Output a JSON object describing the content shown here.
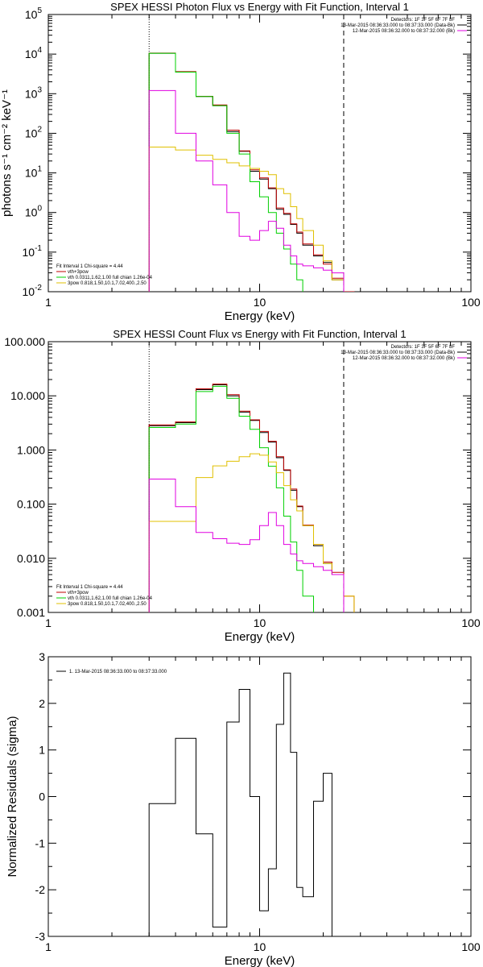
{
  "colors": {
    "data": "#000000",
    "vth_3pow": "#c00000",
    "vth": "#00d000",
    "_3pow": "#e0c000",
    "bk": "#e000e0"
  },
  "chart_data": [
    {
      "type": "line",
      "title": "SPEX HESSI Photon Flux vs Energy with Fit Function, Interval 1",
      "xlabel": "Energy (keV)",
      "ylabel": "photons s⁻¹ cm⁻² keV⁻¹",
      "xscale": "log",
      "yscale": "log",
      "xlim": [
        1,
        100
      ],
      "ylim": [
        0.01,
        100000
      ],
      "x_ticks": [
        "1",
        "10",
        "100"
      ],
      "y_ticks": [
        {
          "v": 0.01,
          "base": "10",
          "exp": "-2"
        },
        {
          "v": 0.1,
          "base": "10",
          "exp": "-1"
        },
        {
          "v": 1,
          "base": "10",
          "exp": "0"
        },
        {
          "v": 10,
          "base": "10",
          "exp": "1"
        },
        {
          "v": 100,
          "base": "10",
          "exp": "2"
        },
        {
          "v": 1000,
          "base": "10",
          "exp": "3"
        },
        {
          "v": 10000,
          "base": "10",
          "exp": "4"
        },
        {
          "v": 100000,
          "base": "10",
          "exp": "5"
        }
      ],
      "vlines": [
        {
          "x": 3,
          "style": "dotted"
        },
        {
          "x": 25,
          "style": "dashed"
        }
      ],
      "legend_top": [
        {
          "text": "Detectors: 1F 3F 5F 6F 7F 8F",
          "color": ""
        },
        {
          "text": "13-Mar-2015 08:36:33.000 to 08:37:33.000 (Data-Bk)",
          "color": "data"
        },
        {
          "text": "12-Mar-2015 08:36:32.000 to 08:37:32.000 (Bk)",
          "color": "bk"
        }
      ],
      "legend_bottom": [
        {
          "text": "Fit Interval 1   Chi-square = 4.44",
          "color": ""
        },
        {
          "text": "vth+3pow",
          "color": "vth_3pow"
        },
        {
          "text": "vth 0.0311,1.62,1.00  full chian 1.26e-04",
          "color": "vth"
        },
        {
          "text": "3pow 0.818,1.50,10.1,7.02,400.,2.50",
          "color": "_3pow"
        }
      ],
      "edges": [
        3,
        4,
        5,
        6,
        7,
        8,
        9,
        10,
        11,
        12,
        13,
        14,
        15,
        16,
        18,
        20,
        22,
        25,
        28
      ],
      "series": [
        {
          "key": "data",
          "values": [
            10500,
            3500,
            850,
            500,
            110,
            35,
            11,
            7,
            4,
            1.2,
            0.9,
            0.5,
            0.3,
            0.15,
            0.08,
            0.055,
            0.02,
            null
          ]
        },
        {
          "key": "vth_3pow",
          "values": [
            10600,
            3600,
            860,
            520,
            120,
            36,
            12,
            7.5,
            4.2,
            1.3,
            0.95,
            0.52,
            0.32,
            0.16,
            0.085,
            0.05,
            0.022,
            0.01
          ]
        },
        {
          "key": "vth",
          "values": [
            10500,
            3500,
            850,
            500,
            100,
            30,
            6,
            2.5,
            1,
            0.3,
            0.12,
            0.05,
            0.02,
            0.008,
            null,
            null,
            null,
            null
          ]
        },
        {
          "key": "_3pow",
          "values": [
            45,
            38,
            28,
            22,
            18,
            15,
            13,
            11,
            9,
            4,
            3,
            1.4,
            0.7,
            0.35,
            0.15,
            0.06,
            0.02,
            0.008
          ]
        },
        {
          "key": "bk",
          "values": [
            1200,
            100,
            20,
            5,
            1,
            0.25,
            0.2,
            0.35,
            0.6,
            0.4,
            0.15,
            0.08,
            0.05,
            0.045,
            0.04,
            0.035,
            0.03,
            null
          ]
        }
      ]
    },
    {
      "type": "line",
      "title": "SPEX HESSI Count Flux vs Energy with Fit Function, Interval 1",
      "xlabel": "Energy (keV)",
      "ylabel": "",
      "xscale": "log",
      "yscale": "log",
      "xlim": [
        1,
        100
      ],
      "ylim": [
        0.001,
        100
      ],
      "x_ticks": [
        "1",
        "10",
        "100"
      ],
      "y_ticks": [
        {
          "v": 0.001,
          "label": "0.001"
        },
        {
          "v": 0.01,
          "label": "0.010"
        },
        {
          "v": 0.1,
          "label": "0.100"
        },
        {
          "v": 1,
          "label": "1.000"
        },
        {
          "v": 10,
          "label": "10.000"
        },
        {
          "v": 100,
          "label": "100.000"
        }
      ],
      "vlines": [
        {
          "x": 3,
          "style": "dotted"
        },
        {
          "x": 25,
          "style": "dashed"
        }
      ],
      "legend_top": [
        {
          "text": "Detectors: 1F 3F 5F 6F 7F 8F",
          "color": ""
        },
        {
          "text": "13-Mar-2015 08:36:33.000 to 08:37:33.000 (Data-Bk)",
          "color": "data"
        },
        {
          "text": "12-Mar-2015 08:36:32.000 to 08:37:32.000 (Bk)",
          "color": "bk"
        }
      ],
      "legend_bottom": [
        {
          "text": "Fit Interval 1   Chi-square = 4.44",
          "color": ""
        },
        {
          "text": "vth+3pow",
          "color": "vth_3pow"
        },
        {
          "text": "vth 0.0311,1.62,1.00  full chian 1.26e-04",
          "color": "vth"
        },
        {
          "text": "3pow 0.818,1.50,10.1,7.02,400.,2.50",
          "color": "_3pow"
        }
      ],
      "edges": [
        3,
        4,
        5,
        6,
        7,
        8,
        9,
        10,
        11,
        12,
        13,
        14,
        15,
        16,
        18,
        20,
        22,
        25,
        28
      ],
      "series": [
        {
          "key": "data",
          "values": [
            2.8,
            3.2,
            13,
            16,
            10,
            5,
            3.5,
            2.1,
            1.4,
            0.72,
            0.42,
            0.18,
            0.09,
            0.04,
            0.017,
            0.008,
            0.005,
            null
          ]
        },
        {
          "key": "vth_3pow",
          "values": [
            2.9,
            3.3,
            13.5,
            16.5,
            10.5,
            5.2,
            3.6,
            2.2,
            1.45,
            0.75,
            0.43,
            0.19,
            0.092,
            0.041,
            0.018,
            0.0085,
            0.0055,
            0.002
          ]
        },
        {
          "key": "vth",
          "values": [
            2.6,
            3.0,
            12,
            15,
            9,
            4.2,
            2.4,
            1.1,
            0.5,
            0.2,
            0.06,
            0.02,
            0.006,
            0.002,
            null,
            null,
            null,
            null
          ]
        },
        {
          "key": "_3pow",
          "values": [
            0.048,
            0.048,
            0.31,
            0.51,
            0.62,
            0.75,
            0.85,
            0.8,
            0.6,
            0.38,
            0.22,
            0.12,
            0.075,
            0.04,
            0.018,
            0.008,
            0.005,
            0.002
          ]
        },
        {
          "key": "bk",
          "values": [
            0.29,
            0.09,
            0.03,
            0.023,
            0.019,
            0.018,
            0.022,
            0.04,
            0.07,
            0.04,
            0.018,
            0.012,
            0.009,
            0.008,
            0.007,
            0.006,
            0.005,
            null
          ]
        }
      ]
    },
    {
      "type": "line",
      "title": "",
      "xlabel": "Energy (keV)",
      "ylabel": "Normalized Residuals (sigma)",
      "xscale": "log",
      "yscale": "linear",
      "xlim": [
        1,
        100
      ],
      "ylim": [
        -3,
        3
      ],
      "x_ticks": [
        "1",
        "10",
        "100"
      ],
      "y_ticks": [
        {
          "v": -3,
          "label": "-3"
        },
        {
          "v": -2,
          "label": "-2"
        },
        {
          "v": -1,
          "label": "-1"
        },
        {
          "v": 0,
          "label": "0"
        },
        {
          "v": 1,
          "label": "1"
        },
        {
          "v": 2,
          "label": "2"
        },
        {
          "v": 3,
          "label": "3"
        }
      ],
      "vlines": [],
      "legend_top": [],
      "legend_bottom": [],
      "legend_left": [
        {
          "text": "1. 13-Mar-2015 08:36:33.000 to 08:37:33.000",
          "color": "data"
        }
      ],
      "edges": [
        3,
        4,
        5,
        6,
        7,
        8,
        9,
        10,
        11,
        12,
        13,
        14,
        15,
        16,
        18,
        20,
        22,
        25
      ],
      "series": [
        {
          "key": "data",
          "values": [
            -0.15,
            1.25,
            -0.8,
            -2.8,
            1.6,
            2.3,
            0,
            -2.45,
            -1.55,
            1.55,
            2.65,
            0.95,
            -1.95,
            -2.15,
            -0.1,
            0.5,
            null
          ]
        }
      ]
    }
  ]
}
